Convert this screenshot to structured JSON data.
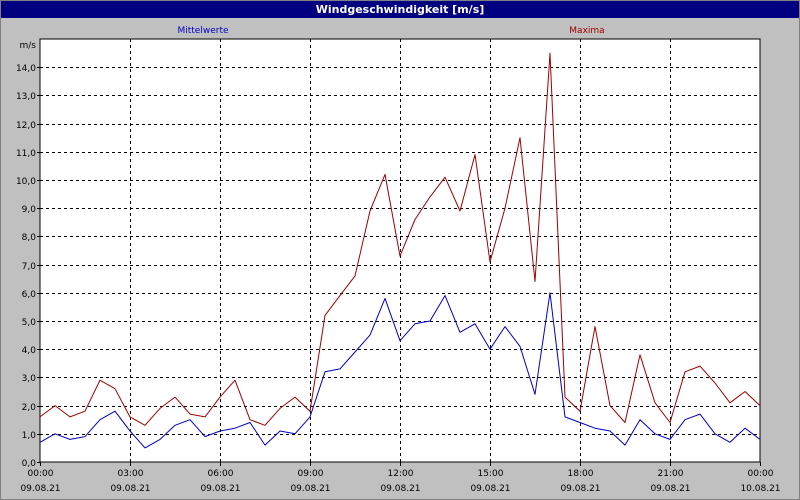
{
  "window": {
    "title": "Windgeschwindigkeit [m/s]"
  },
  "chart_data": {
    "type": "line",
    "title": "Windgeschwindigkeit [m/s]",
    "ylabel": "m/s",
    "ylim": [
      0,
      15
    ],
    "xlim_hours": [
      0,
      24
    ],
    "yticks": [
      0,
      1,
      2,
      3,
      4,
      5,
      6,
      7,
      8,
      9,
      10,
      11,
      12,
      13,
      14
    ],
    "ytick_labels": [
      "0,0",
      "1,0",
      "2,0",
      "3,0",
      "4,0",
      "5,0",
      "6,0",
      "7,0",
      "8,0",
      "9,0",
      "10,0",
      "11,0",
      "12,0",
      "13,0",
      "14,0"
    ],
    "xticks": [
      {
        "time": "00:00",
        "date": "09.08.21"
      },
      {
        "time": "03:00",
        "date": "09.08.21"
      },
      {
        "time": "06:00",
        "date": "09.08.21"
      },
      {
        "time": "09:00",
        "date": "09.08.21"
      },
      {
        "time": "12:00",
        "date": "09.08.21"
      },
      {
        "time": "15:00",
        "date": "09.08.21"
      },
      {
        "time": "18:00",
        "date": "09.08.21"
      },
      {
        "time": "21:00",
        "date": "09.08.21"
      },
      {
        "time": "00:00",
        "date": "10.08.21"
      }
    ],
    "grid": true,
    "legend_position": "top",
    "series": [
      {
        "name": "Mittelwerte",
        "color": "#0000c8",
        "x_hours": [
          0,
          0.5,
          1,
          1.5,
          2,
          2.5,
          3,
          3.5,
          4,
          4.5,
          5,
          5.5,
          6,
          6.5,
          7,
          7.5,
          8,
          8.5,
          9,
          9.5,
          10,
          10.5,
          11,
          11.5,
          12,
          12.5,
          13,
          13.5,
          14,
          14.5,
          15,
          15.5,
          16,
          16.5,
          17,
          17.5,
          18,
          18.5,
          19,
          19.5,
          20,
          20.5,
          21,
          21.5,
          22,
          22.5,
          23,
          23.5,
          24
        ],
        "values": [
          0.7,
          1.0,
          0.8,
          0.9,
          1.5,
          1.8,
          1.1,
          0.5,
          0.8,
          1.3,
          1.5,
          0.9,
          1.1,
          1.2,
          1.4,
          0.6,
          1.1,
          1.0,
          1.6,
          3.2,
          3.3,
          3.9,
          4.5,
          5.8,
          4.3,
          4.9,
          5.0,
          5.9,
          4.6,
          4.9,
          4.0,
          4.8,
          4.1,
          2.4,
          6.0,
          1.6,
          1.4,
          1.2,
          1.1,
          0.6,
          1.5,
          1.0,
          0.8,
          1.5,
          1.7,
          1.0,
          0.7,
          1.2,
          0.8
        ]
      },
      {
        "name": "Maxima",
        "color": "#a00000",
        "x_hours": [
          0,
          0.5,
          1,
          1.5,
          2,
          2.5,
          3,
          3.5,
          4,
          4.5,
          5,
          5.5,
          6,
          6.5,
          7,
          7.5,
          8,
          8.5,
          9,
          9.5,
          10,
          10.5,
          11,
          11.5,
          12,
          12.5,
          13,
          13.5,
          14,
          14.5,
          15,
          15.5,
          16,
          16.5,
          17,
          17.5,
          18,
          18.5,
          19,
          19.5,
          20,
          20.5,
          21,
          21.5,
          22,
          22.5,
          23,
          23.5,
          24
        ],
        "values": [
          1.6,
          2.0,
          1.6,
          1.8,
          2.9,
          2.6,
          1.6,
          1.3,
          1.9,
          2.3,
          1.7,
          1.6,
          2.3,
          2.9,
          1.5,
          1.3,
          1.9,
          2.3,
          1.8,
          5.2,
          5.9,
          6.6,
          8.9,
          10.2,
          7.3,
          8.6,
          9.4,
          10.1,
          8.9,
          10.9,
          7.1,
          9.0,
          11.5,
          6.4,
          14.5,
          2.3,
          1.8,
          4.8,
          2.0,
          1.4,
          3.8,
          2.1,
          1.4,
          3.2,
          3.4,
          2.8,
          2.1,
          2.5,
          2.0
        ]
      }
    ]
  }
}
